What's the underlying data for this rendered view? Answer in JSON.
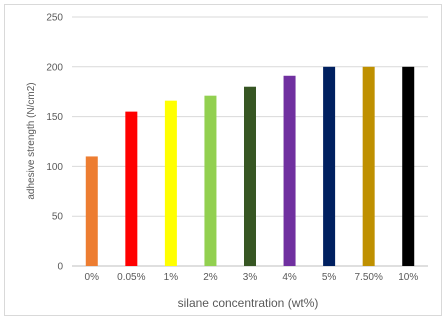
{
  "chart_data": {
    "type": "bar",
    "categories": [
      "0%",
      "0.05%",
      "1%",
      "2%",
      "3%",
      "4%",
      "5%",
      "7.50%",
      "10%"
    ],
    "values": [
      110,
      155,
      166,
      171,
      180,
      191,
      200,
      200,
      200
    ],
    "colors": [
      "#ED7D31",
      "#FF0000",
      "#FFFF00",
      "#92D050",
      "#375623",
      "#7030A0",
      "#002060",
      "#BF9000",
      "#000000"
    ],
    "title": "",
    "xlabel": "silane concentration  (wt%)",
    "ylabel": "adhesive strength (N/cm2)",
    "ylim": [
      0,
      250
    ],
    "yticks": [
      0,
      50,
      100,
      150,
      200,
      250
    ],
    "grid": true,
    "legend": "none"
  }
}
